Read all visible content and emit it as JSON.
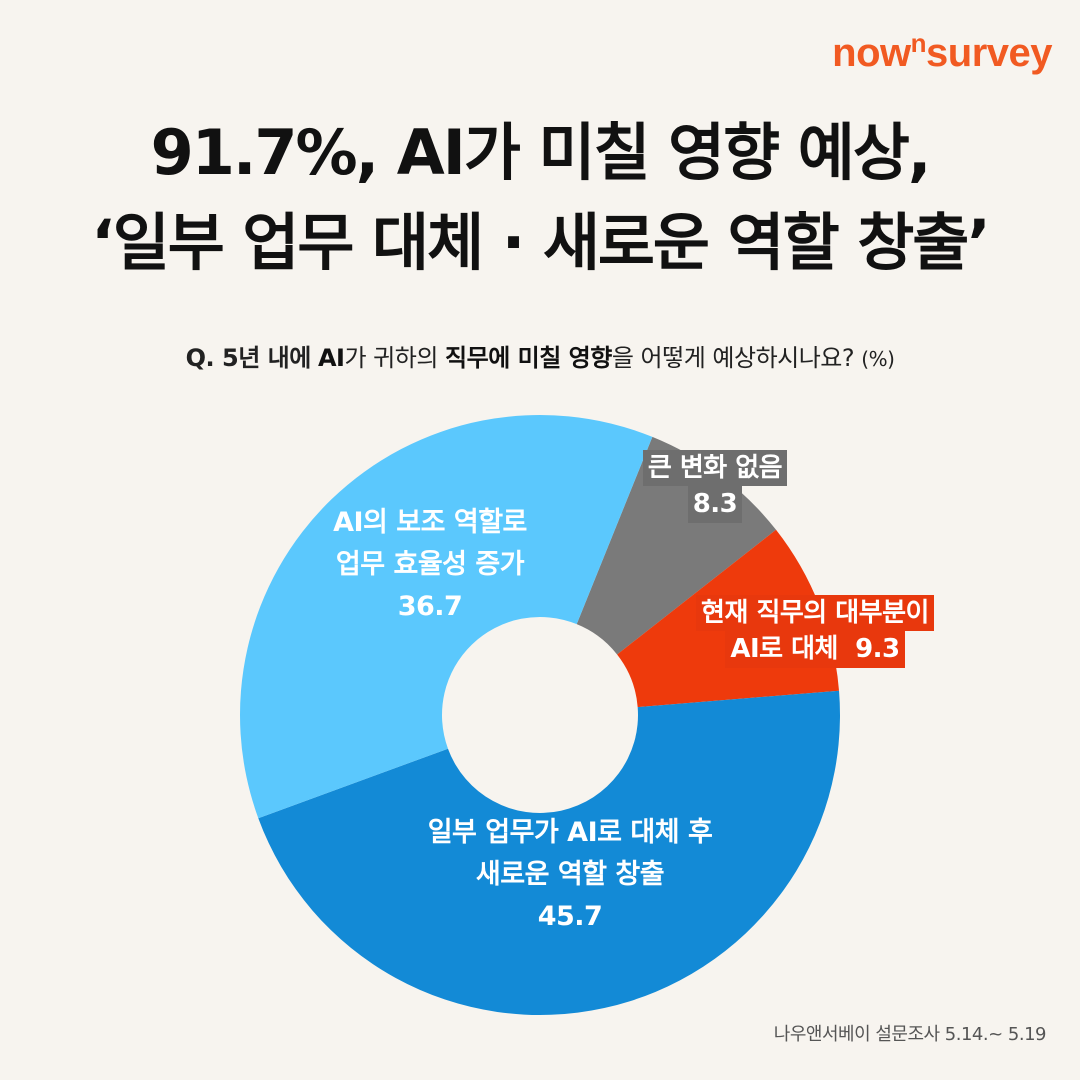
{
  "brand": {
    "name_pre": "now",
    "name_sup": "n",
    "name_post": "survey",
    "color": "#f15a22"
  },
  "title": {
    "line1": "91.7%, AI가 미칠 영향 예상,",
    "line2": "‘일부 업무 대체 · 새로운 역할 창출’"
  },
  "question": {
    "prefix": "Q. 5년 내에",
    "bold1": "AI",
    "mid1": "가 귀하의",
    "bold2": "직무에 미칠 영향",
    "mid2": "을 어떻게 예상하시나요?",
    "unit": "(%)"
  },
  "chart_data": {
    "type": "pie",
    "donut": true,
    "unit": "%",
    "slices": [
      {
        "label_line1": "큰 변화 없음",
        "label_line2": "",
        "value": 8.3,
        "value_text": "8.3",
        "color": "#7a7a7a"
      },
      {
        "label_line1": "현재 직무의 대부분이",
        "label_line2": "AI로 대체",
        "value": 9.3,
        "value_text": "9.3",
        "color": "#ee3a0c"
      },
      {
        "label_line1": "일부 업무가 AI로 대체 후",
        "label_line2": "새로운 역할 창출",
        "value": 45.7,
        "value_text": "45.7",
        "color": "#138ad6"
      },
      {
        "label_line1": "AI의 보조 역할로",
        "label_line2": "업무 효율성 증가",
        "value": 36.7,
        "value_text": "36.7",
        "color": "#5bc8fd"
      }
    ]
  },
  "source": "나우앤서베이 설문조사 5.14.~ 5.19"
}
